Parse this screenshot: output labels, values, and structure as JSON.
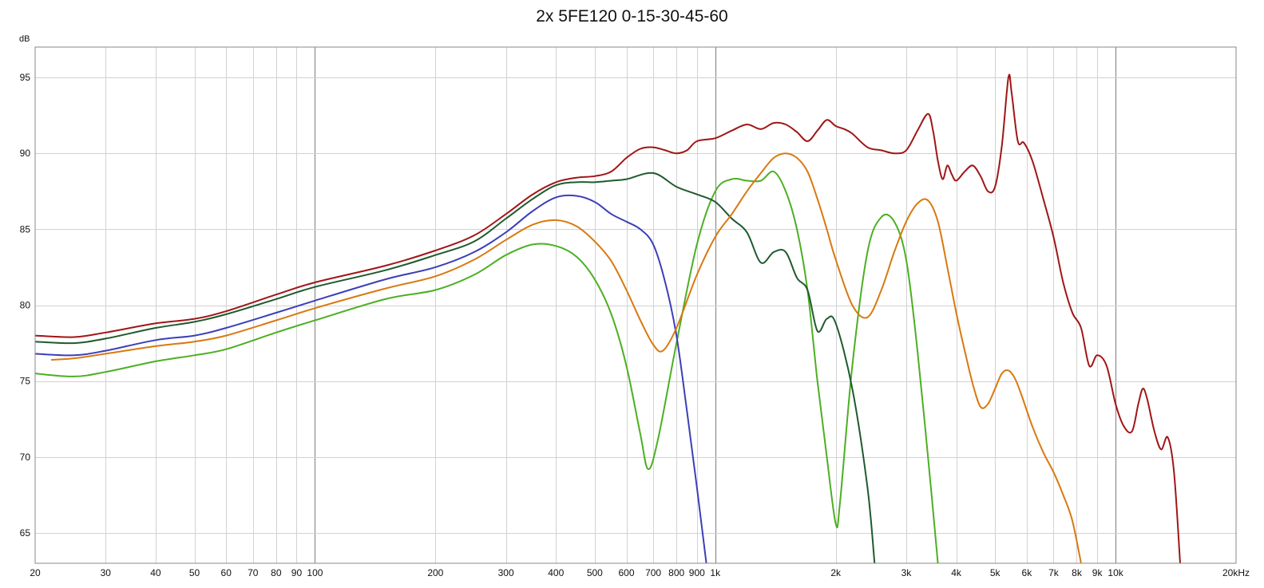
{
  "chart_data": {
    "type": "line",
    "title": "2x 5FE120 0-15-30-45-60",
    "y_unit_label": "dB",
    "x_scale": "log",
    "xlim": [
      20,
      20000
    ],
    "ylim": [
      63,
      97
    ],
    "grid": true,
    "x_ticks": [
      {
        "value": 20,
        "label": "20"
      },
      {
        "value": 30,
        "label": "30"
      },
      {
        "value": 40,
        "label": "40"
      },
      {
        "value": 50,
        "label": "50"
      },
      {
        "value": 60,
        "label": "60"
      },
      {
        "value": 70,
        "label": "70"
      },
      {
        "value": 80,
        "label": "80"
      },
      {
        "value": 90,
        "label": "90"
      },
      {
        "value": 100,
        "label": "100"
      },
      {
        "value": 200,
        "label": "200"
      },
      {
        "value": 300,
        "label": "300"
      },
      {
        "value": 400,
        "label": "400"
      },
      {
        "value": 500,
        "label": "500"
      },
      {
        "value": 600,
        "label": "600"
      },
      {
        "value": 700,
        "label": "700"
      },
      {
        "value": 800,
        "label": "800"
      },
      {
        "value": 900,
        "label": "900"
      },
      {
        "value": 1000,
        "label": "1k"
      },
      {
        "value": 2000,
        "label": "2k"
      },
      {
        "value": 3000,
        "label": "3k"
      },
      {
        "value": 4000,
        "label": "4k"
      },
      {
        "value": 5000,
        "label": "5k"
      },
      {
        "value": 6000,
        "label": "6k"
      },
      {
        "value": 7000,
        "label": "7k"
      },
      {
        "value": 8000,
        "label": "8k"
      },
      {
        "value": 9000,
        "label": "9k"
      },
      {
        "value": 10000,
        "label": "10k"
      },
      {
        "value": 20000,
        "label": "20kHz"
      }
    ],
    "y_ticks": [
      {
        "value": 65,
        "label": "65"
      },
      {
        "value": 70,
        "label": "70"
      },
      {
        "value": 75,
        "label": "75"
      },
      {
        "value": 80,
        "label": "80"
      },
      {
        "value": 85,
        "label": "85"
      },
      {
        "value": 90,
        "label": "90"
      },
      {
        "value": 95,
        "label": "95"
      }
    ],
    "series": [
      {
        "color": "#4caf22",
        "points": [
          [
            20,
            75.5
          ],
          [
            25,
            75.3
          ],
          [
            30,
            75.6
          ],
          [
            40,
            76.3
          ],
          [
            50,
            76.7
          ],
          [
            60,
            77.1
          ],
          [
            80,
            78.2
          ],
          [
            100,
            79.0
          ],
          [
            150,
            80.4
          ],
          [
            200,
            81.0
          ],
          [
            250,
            82.0
          ],
          [
            300,
            83.3
          ],
          [
            350,
            84.0
          ],
          [
            400,
            83.9
          ],
          [
            450,
            83.2
          ],
          [
            500,
            81.7
          ],
          [
            550,
            79.4
          ],
          [
            600,
            76.0
          ],
          [
            650,
            71.5
          ],
          [
            680,
            69.2
          ],
          [
            720,
            71.2
          ],
          [
            800,
            77.5
          ],
          [
            900,
            84.0
          ],
          [
            1000,
            87.5
          ],
          [
            1100,
            88.3
          ],
          [
            1200,
            88.2
          ],
          [
            1300,
            88.2
          ],
          [
            1400,
            88.8
          ],
          [
            1500,
            87.5
          ],
          [
            1600,
            85.0
          ],
          [
            1700,
            81.0
          ],
          [
            1800,
            75.0
          ],
          [
            1900,
            70.0
          ],
          [
            2000,
            65.6
          ],
          [
            2050,
            67.0
          ],
          [
            2200,
            76.0
          ],
          [
            2400,
            83.5
          ],
          [
            2600,
            85.8
          ],
          [
            2800,
            85.5
          ],
          [
            3000,
            83.0
          ],
          [
            3200,
            77.0
          ],
          [
            3400,
            70.0
          ],
          [
            3600,
            63.0
          ]
        ]
      },
      {
        "color": "#1f5a2e",
        "points": [
          [
            20,
            77.6
          ],
          [
            25,
            77.5
          ],
          [
            30,
            77.8
          ],
          [
            40,
            78.5
          ],
          [
            50,
            78.9
          ],
          [
            60,
            79.4
          ],
          [
            80,
            80.4
          ],
          [
            100,
            81.2
          ],
          [
            150,
            82.3
          ],
          [
            200,
            83.3
          ],
          [
            250,
            84.2
          ],
          [
            300,
            85.7
          ],
          [
            350,
            87.0
          ],
          [
            400,
            87.9
          ],
          [
            450,
            88.1
          ],
          [
            500,
            88.1
          ],
          [
            550,
            88.2
          ],
          [
            600,
            88.3
          ],
          [
            700,
            88.7
          ],
          [
            800,
            87.8
          ],
          [
            900,
            87.3
          ],
          [
            1000,
            86.8
          ],
          [
            1100,
            85.7
          ],
          [
            1200,
            84.8
          ],
          [
            1300,
            82.8
          ],
          [
            1400,
            83.5
          ],
          [
            1500,
            83.5
          ],
          [
            1600,
            81.8
          ],
          [
            1700,
            81.0
          ],
          [
            1800,
            78.3
          ],
          [
            1900,
            79.1
          ],
          [
            2000,
            78.8
          ],
          [
            2200,
            74.5
          ],
          [
            2400,
            68.0
          ],
          [
            2500,
            63.0
          ]
        ]
      },
      {
        "color": "#3c3fb8",
        "points": [
          [
            20,
            76.8
          ],
          [
            25,
            76.7
          ],
          [
            30,
            77.0
          ],
          [
            40,
            77.7
          ],
          [
            50,
            78.0
          ],
          [
            60,
            78.5
          ],
          [
            80,
            79.5
          ],
          [
            100,
            80.3
          ],
          [
            150,
            81.7
          ],
          [
            200,
            82.5
          ],
          [
            250,
            83.5
          ],
          [
            300,
            84.8
          ],
          [
            350,
            86.2
          ],
          [
            400,
            87.1
          ],
          [
            450,
            87.2
          ],
          [
            500,
            86.8
          ],
          [
            550,
            86.0
          ],
          [
            600,
            85.5
          ],
          [
            650,
            85.0
          ],
          [
            700,
            84.0
          ],
          [
            750,
            81.5
          ],
          [
            800,
            78.0
          ],
          [
            850,
            73.0
          ],
          [
            900,
            68.0
          ],
          [
            950,
            63.0
          ]
        ]
      },
      {
        "color": "#d97910",
        "points": [
          [
            22,
            76.4
          ],
          [
            25,
            76.5
          ],
          [
            30,
            76.8
          ],
          [
            40,
            77.3
          ],
          [
            50,
            77.6
          ],
          [
            60,
            78.0
          ],
          [
            80,
            79.0
          ],
          [
            100,
            79.8
          ],
          [
            150,
            81.1
          ],
          [
            200,
            81.9
          ],
          [
            250,
            83.0
          ],
          [
            300,
            84.3
          ],
          [
            350,
            85.3
          ],
          [
            400,
            85.6
          ],
          [
            450,
            85.2
          ],
          [
            500,
            84.2
          ],
          [
            550,
            82.9
          ],
          [
            600,
            81.0
          ],
          [
            650,
            79.0
          ],
          [
            700,
            77.4
          ],
          [
            740,
            77.0
          ],
          [
            800,
            78.5
          ],
          [
            900,
            82.0
          ],
          [
            1000,
            84.5
          ],
          [
            1100,
            86.0
          ],
          [
            1200,
            87.5
          ],
          [
            1300,
            88.7
          ],
          [
            1400,
            89.7
          ],
          [
            1500,
            90.0
          ],
          [
            1600,
            89.7
          ],
          [
            1700,
            88.8
          ],
          [
            1800,
            87.0
          ],
          [
            1900,
            85.0
          ],
          [
            2000,
            83.0
          ],
          [
            2200,
            80.0
          ],
          [
            2400,
            79.2
          ],
          [
            2600,
            81.0
          ],
          [
            2800,
            83.5
          ],
          [
            3000,
            85.5
          ],
          [
            3200,
            86.7
          ],
          [
            3400,
            86.9
          ],
          [
            3600,
            85.5
          ],
          [
            3800,
            82.5
          ],
          [
            4000,
            79.5
          ],
          [
            4200,
            77.0
          ],
          [
            4400,
            74.8
          ],
          [
            4600,
            73.3
          ],
          [
            4800,
            73.5
          ],
          [
            5000,
            74.5
          ],
          [
            5200,
            75.5
          ],
          [
            5400,
            75.7
          ],
          [
            5600,
            75.2
          ],
          [
            5800,
            74.2
          ],
          [
            6200,
            72.0
          ],
          [
            6600,
            70.3
          ],
          [
            7000,
            69.0
          ],
          [
            7400,
            67.5
          ],
          [
            7800,
            65.8
          ],
          [
            8200,
            63.0
          ]
        ]
      },
      {
        "color": "#a01616",
        "points": [
          [
            20,
            78.0
          ],
          [
            25,
            77.9
          ],
          [
            30,
            78.2
          ],
          [
            40,
            78.8
          ],
          [
            50,
            79.1
          ],
          [
            60,
            79.6
          ],
          [
            80,
            80.7
          ],
          [
            100,
            81.5
          ],
          [
            150,
            82.6
          ],
          [
            200,
            83.6
          ],
          [
            250,
            84.6
          ],
          [
            300,
            86.0
          ],
          [
            350,
            87.3
          ],
          [
            400,
            88.1
          ],
          [
            450,
            88.4
          ],
          [
            500,
            88.5
          ],
          [
            550,
            88.8
          ],
          [
            600,
            89.7
          ],
          [
            650,
            90.3
          ],
          [
            700,
            90.4
          ],
          [
            750,
            90.2
          ],
          [
            800,
            90.0
          ],
          [
            850,
            90.2
          ],
          [
            900,
            90.8
          ],
          [
            1000,
            91.0
          ],
          [
            1100,
            91.5
          ],
          [
            1200,
            91.9
          ],
          [
            1300,
            91.6
          ],
          [
            1400,
            92.0
          ],
          [
            1500,
            91.9
          ],
          [
            1600,
            91.4
          ],
          [
            1700,
            90.8
          ],
          [
            1800,
            91.5
          ],
          [
            1900,
            92.2
          ],
          [
            2000,
            91.8
          ],
          [
            2100,
            91.6
          ],
          [
            2200,
            91.3
          ],
          [
            2400,
            90.4
          ],
          [
            2600,
            90.2
          ],
          [
            2800,
            90.0
          ],
          [
            3000,
            90.2
          ],
          [
            3200,
            91.5
          ],
          [
            3400,
            92.6
          ],
          [
            3500,
            91.5
          ],
          [
            3600,
            89.5
          ],
          [
            3700,
            88.3
          ],
          [
            3800,
            89.2
          ],
          [
            3900,
            88.6
          ],
          [
            4000,
            88.2
          ],
          [
            4200,
            88.8
          ],
          [
            4400,
            89.2
          ],
          [
            4600,
            88.5
          ],
          [
            4800,
            87.5
          ],
          [
            5000,
            87.8
          ],
          [
            5200,
            90.5
          ],
          [
            5400,
            95.0
          ],
          [
            5500,
            94.0
          ],
          [
            5700,
            90.8
          ],
          [
            5900,
            90.7
          ],
          [
            6200,
            89.5
          ],
          [
            6600,
            87.0
          ],
          [
            7000,
            84.5
          ],
          [
            7400,
            81.5
          ],
          [
            7800,
            79.5
          ],
          [
            8200,
            78.5
          ],
          [
            8600,
            76.0
          ],
          [
            9000,
            76.7
          ],
          [
            9500,
            76.0
          ],
          [
            10000,
            73.5
          ],
          [
            10500,
            72.0
          ],
          [
            11000,
            71.7
          ],
          [
            11400,
            73.5
          ],
          [
            11700,
            74.5
          ],
          [
            12000,
            73.8
          ],
          [
            12500,
            71.7
          ],
          [
            13000,
            70.5
          ],
          [
            13500,
            71.3
          ],
          [
            14000,
            69.0
          ],
          [
            14500,
            63.0
          ]
        ]
      }
    ]
  }
}
